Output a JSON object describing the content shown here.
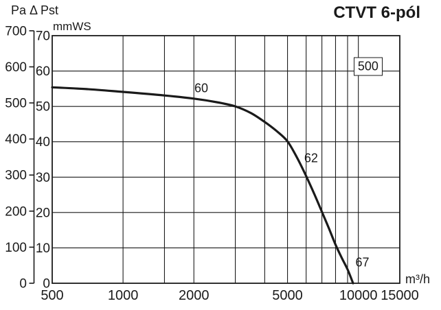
{
  "header": {
    "title": "CTVT 6-pól"
  },
  "axes": {
    "pa_unit": "Pa Δ Pst",
    "mmws_unit": "mmWS",
    "flow_unit": "m³/h"
  },
  "colors": {
    "ink": "#1a1a1a",
    "background": "#ffffff"
  },
  "chart_data": {
    "type": "line",
    "title": "CTVT 6-pól",
    "xlabel": "m³/h",
    "ylabel": "Pa Δ Pst / mmWS",
    "x_scale": "log",
    "xlim": [
      500,
      15000
    ],
    "ylim_mmws": [
      0,
      70
    ],
    "ylim_pa": [
      0,
      700
    ],
    "pa_per_mmws": 9.80665,
    "grid": true,
    "x_gridlines": [
      1000,
      1500,
      2000,
      3000,
      4000,
      5000,
      6000,
      7000,
      8000,
      9000,
      10000
    ],
    "mmws_gridlines": [
      10,
      20,
      30,
      40,
      50,
      60
    ],
    "x_tick_labels": [
      500,
      1000,
      2000,
      5000,
      10000,
      15000
    ],
    "mmws_ticks": [
      0,
      10,
      20,
      30,
      40,
      50,
      60,
      70
    ],
    "pa_ticks": [
      0,
      100,
      200,
      300,
      400,
      500,
      600,
      700
    ],
    "series": [
      {
        "name": "fan curve",
        "points_flow_mmws": [
          [
            500,
            55.4
          ],
          [
            700,
            54.9
          ],
          [
            1000,
            54.1
          ],
          [
            1500,
            53.1
          ],
          [
            2000,
            52.2
          ],
          [
            2500,
            51.2
          ],
          [
            3000,
            50.0
          ],
          [
            3500,
            48.1
          ],
          [
            4000,
            45.6
          ],
          [
            4500,
            43.0
          ],
          [
            5000,
            40.1
          ],
          [
            5500,
            35.4
          ],
          [
            6000,
            30.3
          ],
          [
            6500,
            25.2
          ],
          [
            7000,
            20.2
          ],
          [
            7500,
            15.5
          ],
          [
            8000,
            10.9
          ],
          [
            8500,
            7.2
          ],
          [
            9000,
            3.9
          ],
          [
            9500,
            0
          ]
        ]
      }
    ],
    "curve_labels": [
      {
        "text": "60",
        "flow": 2150,
        "mmws": 55.0
      },
      {
        "text": "62",
        "flow": 6300,
        "mmws": 35.3
      },
      {
        "text": "67",
        "flow": 10400,
        "mmws": 5.8
      }
    ],
    "speed_box": {
      "text": "500",
      "flow": 11000,
      "mmws": 61.2
    }
  }
}
